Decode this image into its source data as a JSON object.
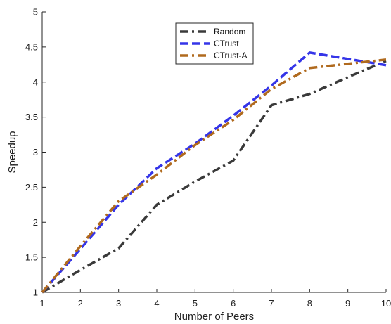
{
  "chart_data": {
    "type": "line",
    "xlabel": "Number of Peers",
    "ylabel": "Speedup",
    "xlim": [
      1,
      10
    ],
    "ylim": [
      1,
      5
    ],
    "x_ticks": [
      1,
      2,
      3,
      4,
      5,
      6,
      7,
      8,
      9,
      10
    ],
    "y_ticks": [
      1,
      1.5,
      2,
      2.5,
      3,
      3.5,
      4,
      4.5,
      5
    ],
    "y_tick_labels": [
      "1",
      "1.5",
      "2",
      "2.5",
      "3",
      "3.5",
      "4",
      "4.5",
      "5"
    ],
    "grid": false,
    "legend_position": "top-center",
    "series": [
      {
        "name": "Random",
        "color": "#3a3a3a",
        "style": "dash-dot",
        "x": [
          1,
          2,
          3,
          4,
          5,
          6,
          7,
          8,
          9,
          10
        ],
        "y": [
          1.0,
          1.32,
          1.63,
          2.25,
          2.58,
          2.88,
          3.67,
          3.83,
          4.07,
          4.3
        ]
      },
      {
        "name": "CTrust",
        "color": "#3535e8",
        "style": "dashed",
        "x": [
          1,
          2,
          3,
          4,
          5,
          6,
          7,
          8,
          9,
          10
        ],
        "y": [
          1.0,
          1.62,
          2.25,
          2.77,
          3.12,
          3.52,
          3.95,
          4.42,
          4.33,
          4.24
        ]
      },
      {
        "name": "CTrust-A",
        "color": "#b06a1e",
        "style": "dash-dot",
        "x": [
          1,
          2,
          3,
          4,
          5,
          6,
          7,
          8,
          9,
          10
        ],
        "y": [
          1.0,
          1.66,
          2.3,
          2.68,
          3.1,
          3.46,
          3.9,
          4.2,
          4.26,
          4.32
        ]
      }
    ]
  }
}
